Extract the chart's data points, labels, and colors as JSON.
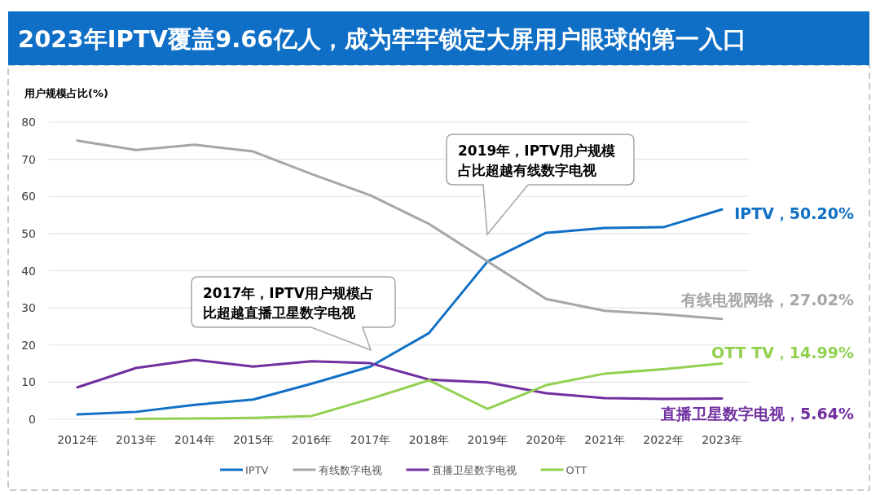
{
  "chart_data": {
    "type": "line",
    "title": "2023年IPTV覆盖9.66亿人，成为牢牢锁定大屏用户眼球的第一入口",
    "ylabel": "用户规模占比(%)",
    "categories": [
      "2012年",
      "2013年",
      "2014年",
      "2015年",
      "2016年",
      "2017年",
      "2018年",
      "2019年",
      "2020年",
      "2021年",
      "2022年",
      "2023年"
    ],
    "series": [
      {
        "name": "IPTV",
        "color": "#1170c5",
        "values": [
          1.3,
          2.0,
          3.9,
          5.3,
          9.6,
          14.2,
          23.2,
          42.5,
          50.2,
          51.5,
          51.7,
          56.5
        ]
      },
      {
        "name": "有线数字电视",
        "color": "#a6a6a6",
        "values": [
          75.0,
          72.5,
          73.9,
          72.1,
          66.0,
          60.3,
          52.6,
          42.5,
          32.4,
          29.2,
          28.3,
          27.0
        ]
      },
      {
        "name": "直播卫星数字电视",
        "color": "#7030a0",
        "values": [
          8.6,
          13.8,
          16.0,
          14.2,
          15.6,
          15.1,
          10.7,
          9.9,
          7.0,
          5.7,
          5.5,
          5.6
        ]
      },
      {
        "name": "OTT",
        "color": "#92d050",
        "values": [
          null,
          0.1,
          0.2,
          0.4,
          0.9,
          5.5,
          10.5,
          2.8,
          9.2,
          12.3,
          13.5,
          15.0
        ]
      }
    ],
    "ylim": [
      0,
      80
    ],
    "yticks": [
      0,
      10,
      20,
      30,
      40,
      50,
      60,
      70,
      80
    ],
    "grid": "y",
    "legend": "bottom",
    "marker": "none",
    "line_style": "solid",
    "annotations": [
      "2017年，IPTV用户规模占比超越直播卫星数字电视",
      "2019年，IPTV用户规模占比超越有线数字电视",
      "IPTV，50.20%",
      "有线电视网络，27.02%",
      "OTT TV，14.99%",
      "直播卫星数字电视，5.64%"
    ]
  }
}
